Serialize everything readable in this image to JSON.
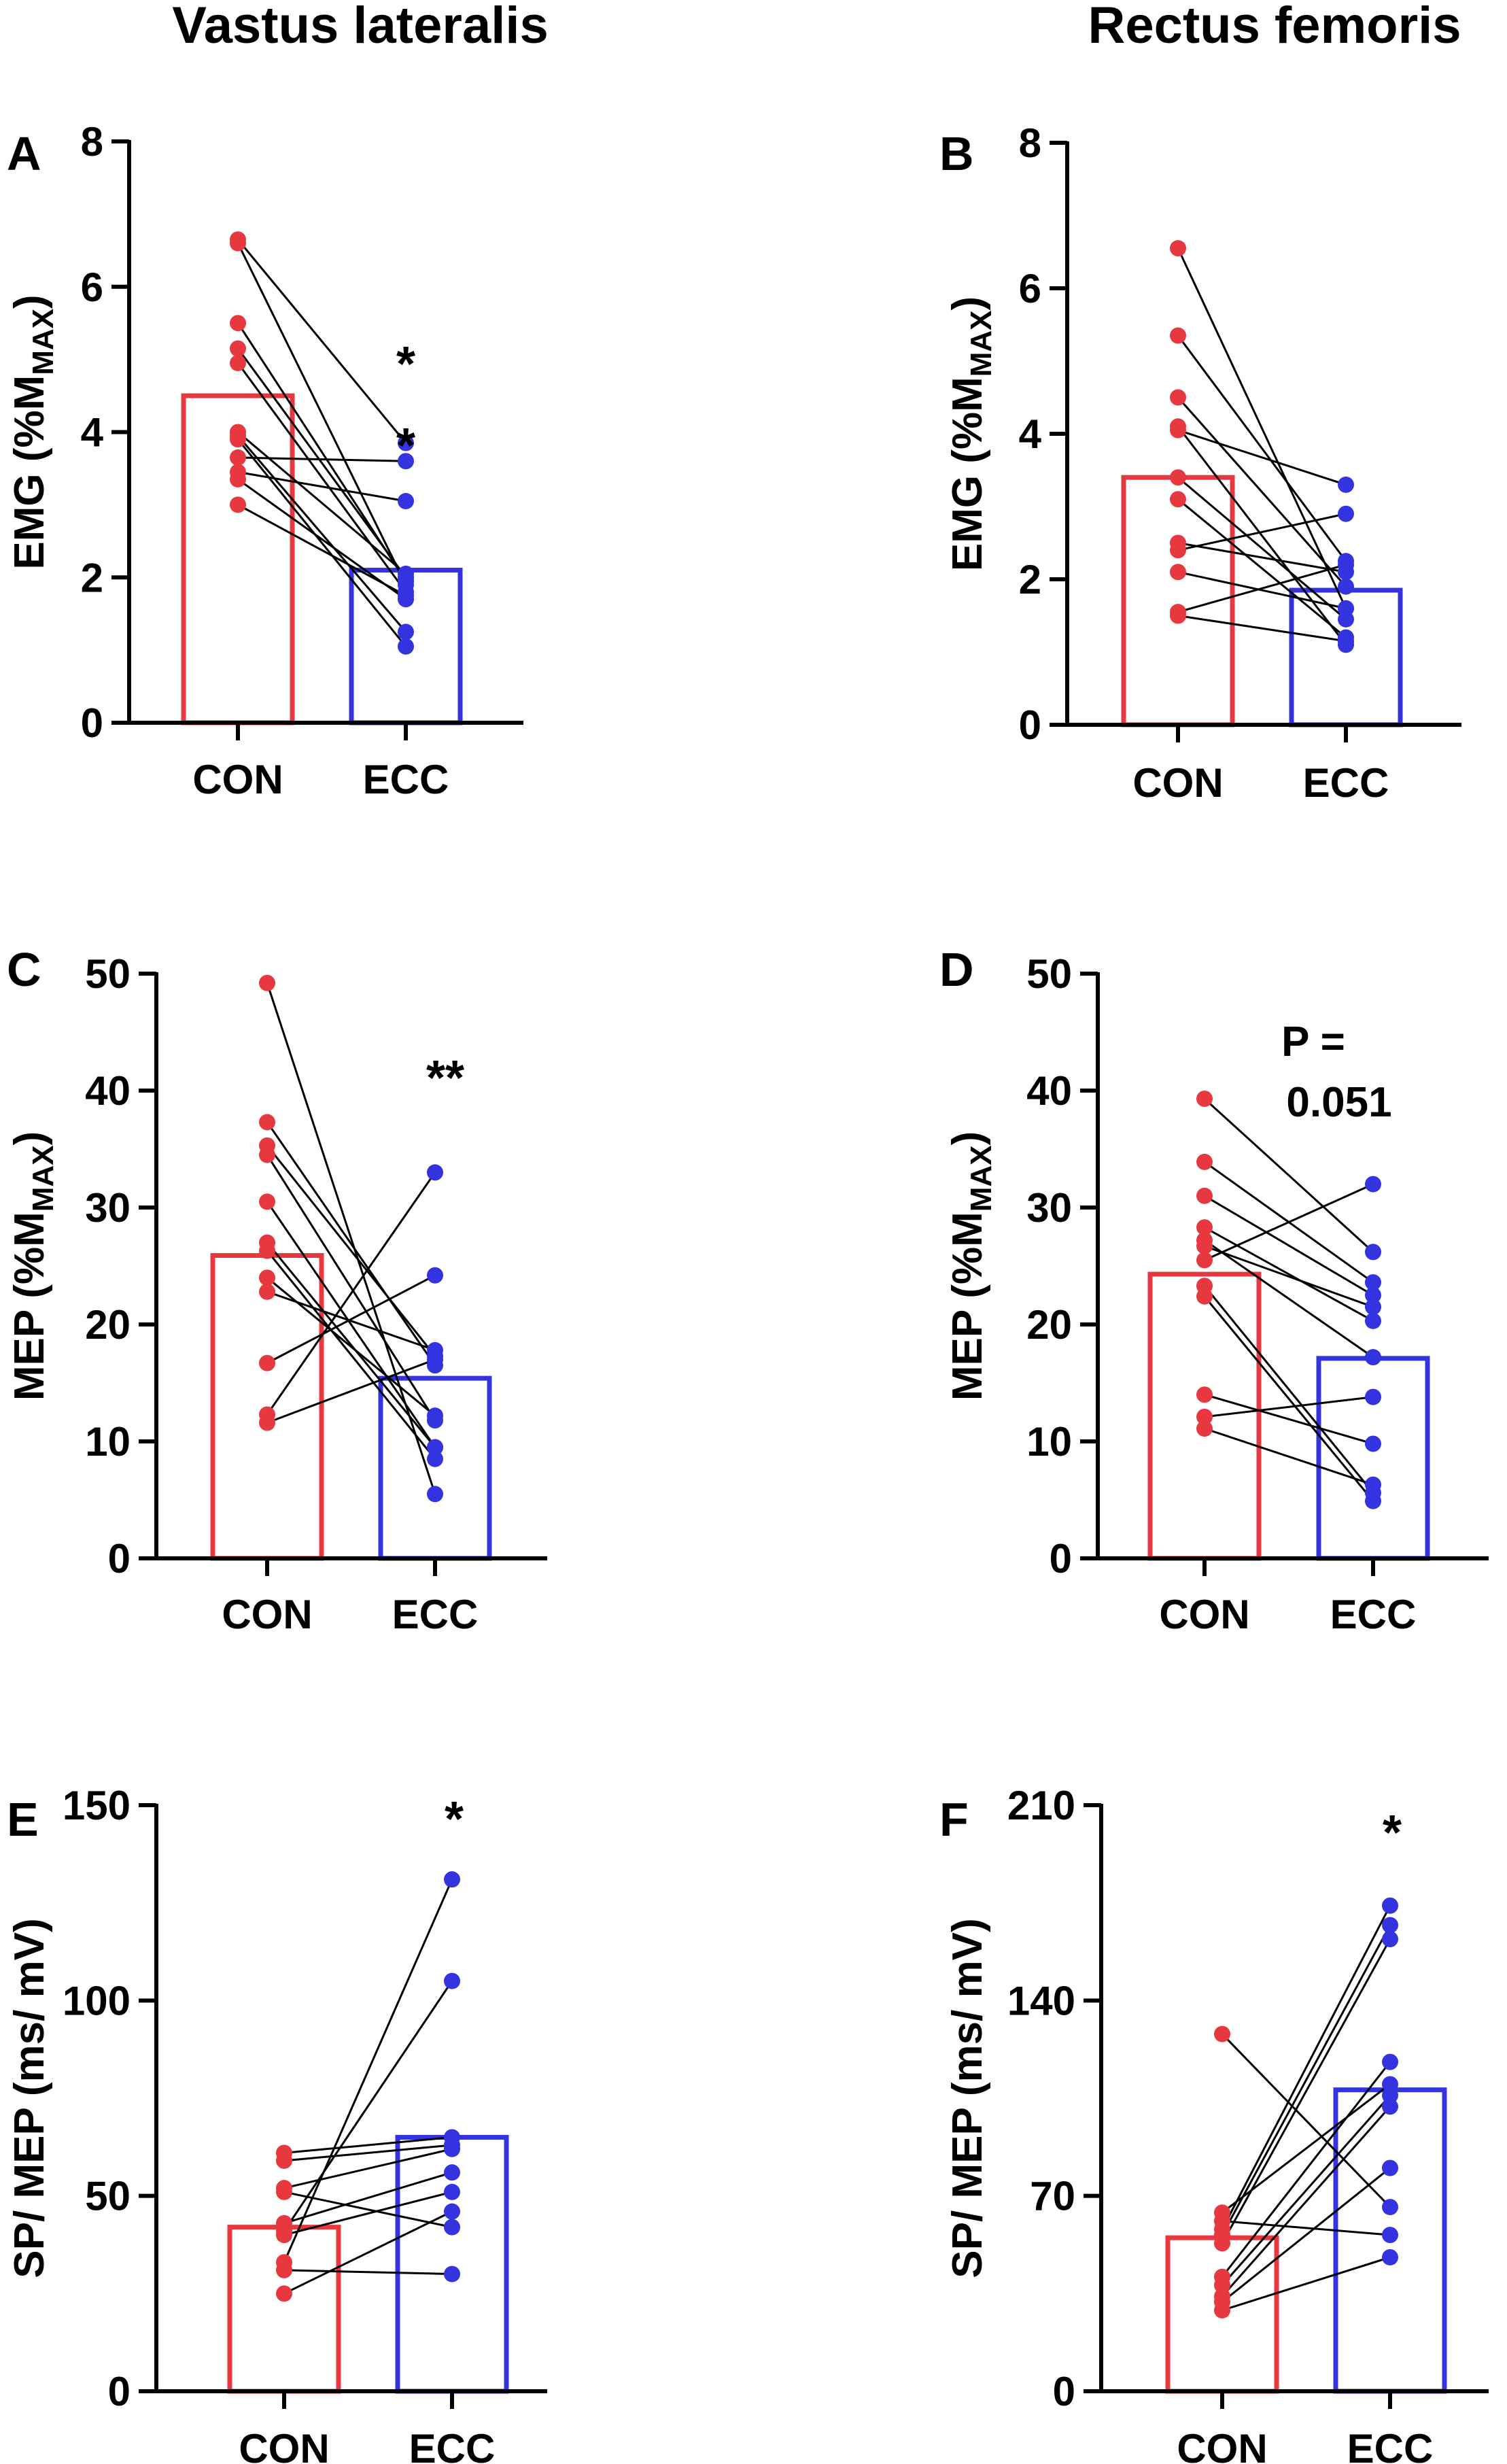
{
  "column_titles": [
    "Vastus lateralis",
    "Rectus femoris"
  ],
  "colors": {
    "con": "#e8383f",
    "ecc": "#3333e0",
    "axis": "#000000",
    "link": "#000000"
  },
  "chart_data": [
    {
      "id": "A",
      "type": "bar",
      "title": "Vastus lateralis",
      "ylabel": "EMG (%M",
      "ylabel_sub": "MAX",
      "ylabel_end": ")",
      "ylim": [
        0,
        8
      ],
      "yticks": [
        0,
        2,
        4,
        6,
        8
      ],
      "yticklabels": [
        "0",
        "2",
        "4",
        "6",
        "8"
      ],
      "categories": [
        "CON",
        "ECC"
      ],
      "bar_values": [
        4.5,
        2.1
      ],
      "pairs": [
        [
          6.65,
          3.85
        ],
        [
          6.6,
          1.9
        ],
        [
          5.5,
          1.95
        ],
        [
          5.15,
          2.0
        ],
        [
          4.95,
          1.8
        ],
        [
          4.0,
          2.05
        ],
        [
          3.95,
          1.25
        ],
        [
          3.9,
          1.05
        ],
        [
          3.65,
          3.6
        ],
        [
          3.45,
          3.05
        ],
        [
          3.35,
          1.7
        ],
        [
          3.0,
          1.75
        ]
      ],
      "annotation": [
        "*",
        "*"
      ]
    },
    {
      "id": "B",
      "type": "bar",
      "title": "Rectus femoris",
      "ylabel": "EMG (%M",
      "ylabel_sub": "MAX",
      "ylabel_end": ")",
      "ylim": [
        0,
        8
      ],
      "yticks": [
        0,
        2,
        4,
        6,
        8
      ],
      "yticklabels": [
        "0",
        "2",
        "4",
        "6",
        "8"
      ],
      "categories": [
        "CON",
        "ECC"
      ],
      "bar_values": [
        3.4,
        1.85
      ],
      "pairs": [
        [
          6.55,
          1.6
        ],
        [
          5.35,
          2.25
        ],
        [
          4.5,
          1.9
        ],
        [
          4.1,
          1.1
        ],
        [
          4.05,
          3.3
        ],
        [
          3.4,
          1.45
        ],
        [
          3.1,
          1.2
        ],
        [
          2.5,
          2.1
        ],
        [
          2.4,
          2.9
        ],
        [
          2.1,
          1.6
        ],
        [
          1.55,
          2.2
        ],
        [
          1.5,
          1.15
        ]
      ],
      "annotation": []
    },
    {
      "id": "C",
      "type": "bar",
      "title": "Vastus lateralis",
      "ylabel": "MEP (%M",
      "ylabel_sub": "MAX",
      "ylabel_end": ")",
      "ylim": [
        0,
        50
      ],
      "yticks": [
        0,
        10,
        20,
        30,
        40,
        50
      ],
      "yticklabels": [
        "0",
        "10",
        "20",
        "30",
        "40",
        "50"
      ],
      "categories": [
        "CON",
        "ECC"
      ],
      "bar_values": [
        25.9,
        15.4
      ],
      "pairs": [
        [
          49.2,
          5.5
        ],
        [
          37.3,
          16.5
        ],
        [
          35.3,
          17.3
        ],
        [
          34.5,
          11.8
        ],
        [
          30.5,
          9.5
        ],
        [
          27.0,
          9.5
        ],
        [
          26.3,
          8.5
        ],
        [
          24.0,
          12.2
        ],
        [
          22.8,
          17.8
        ],
        [
          16.7,
          24.2
        ],
        [
          12.3,
          33.0
        ],
        [
          11.6,
          17.0
        ]
      ],
      "annotation": [
        "**"
      ]
    },
    {
      "id": "D",
      "type": "bar",
      "title": "Rectus femoris",
      "ylabel": "MEP (%M",
      "ylabel_sub": "MAX",
      "ylabel_end": ")",
      "ylim": [
        0,
        50
      ],
      "yticks": [
        0,
        10,
        20,
        30,
        40,
        50
      ],
      "yticklabels": [
        "0",
        "10",
        "20",
        "30",
        "40",
        "50"
      ],
      "categories": [
        "CON",
        "ECC"
      ],
      "bar_values": [
        24.3,
        17.1
      ],
      "pairs": [
        [
          39.3,
          26.2
        ],
        [
          33.9,
          23.6
        ],
        [
          31.0,
          22.5
        ],
        [
          28.3,
          20.3
        ],
        [
          27.2,
          17.2
        ],
        [
          26.7,
          21.5
        ],
        [
          25.5,
          32.0
        ],
        [
          23.3,
          5.6
        ],
        [
          22.4,
          4.9
        ],
        [
          14.0,
          9.8
        ],
        [
          12.1,
          13.8
        ],
        [
          11.1,
          6.3
        ]
      ],
      "annotation": [
        "P =",
        "0.051"
      ]
    },
    {
      "id": "E",
      "type": "bar",
      "title": "Vastus lateralis",
      "ylabel": "SP/ MEP (ms/ mV)",
      "ylabel_sub": "",
      "ylabel_end": "",
      "ylim": [
        0,
        150
      ],
      "yticks": [
        0,
        50,
        100,
        150
      ],
      "yticklabels": [
        "0",
        "50",
        "100",
        "150"
      ],
      "categories": [
        "CON",
        "ECC"
      ],
      "bar_values": [
        42,
        65
      ],
      "pairs": [
        [
          61,
          65
        ],
        [
          59,
          63
        ],
        [
          52,
          62
        ],
        [
          51,
          42
        ],
        [
          43,
          56
        ],
        [
          41,
          105
        ],
        [
          40,
          51
        ],
        [
          33,
          131
        ],
        [
          31,
          30
        ],
        [
          25,
          46
        ]
      ],
      "annotation": [
        "*"
      ]
    },
    {
      "id": "F",
      "type": "bar",
      "title": "Rectus femoris",
      "ylabel": "SP/ MEP (ms/ mV)",
      "ylabel_sub": "",
      "ylabel_end": "",
      "ylim": [
        0,
        210
      ],
      "yticks": [
        0,
        70,
        140,
        210
      ],
      "yticklabels": [
        "0",
        "70",
        "140",
        "210"
      ],
      "categories": [
        "CON",
        "ECC"
      ],
      "bar_values": [
        55,
        108
      ],
      "pairs": [
        [
          128,
          66
        ],
        [
          64,
          110
        ],
        [
          61,
          56
        ],
        [
          58,
          174
        ],
        [
          56,
          167
        ],
        [
          53,
          162
        ],
        [
          41,
          118
        ],
        [
          38,
          106
        ],
        [
          34,
          102
        ],
        [
          32,
          80
        ],
        [
          29,
          48
        ]
      ],
      "annotation": [
        "*"
      ]
    }
  ]
}
